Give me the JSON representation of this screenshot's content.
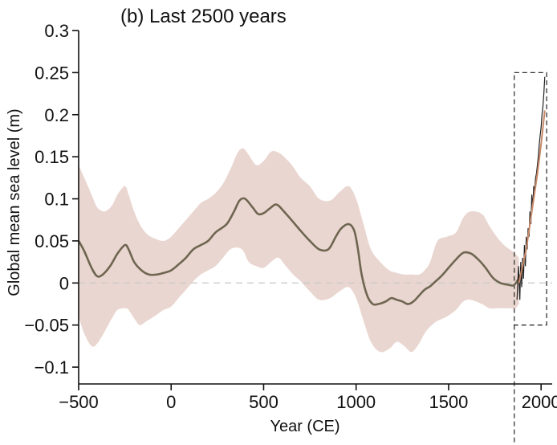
{
  "chart_data": {
    "type": "line",
    "title": "(b)  Last 2500 years",
    "xlabel": "Year (CE)",
    "ylabel": "Global mean sea level (m)",
    "xlim": [
      -500,
      2060
    ],
    "ylim": [
      -0.12,
      0.3
    ],
    "xticks": [
      -500,
      0,
      500,
      1000,
      1500,
      2000
    ],
    "xtick_labels": [
      "−500",
      "0",
      "500",
      "1000",
      "1500",
      "2000"
    ],
    "yticks": [
      0.3,
      0.25,
      0.2,
      0.15,
      0.1,
      0.05,
      0,
      -0.05,
      -0.1
    ],
    "ytick_labels": [
      "0.3",
      "0.25",
      "0.2",
      "0.15",
      "0.1",
      "0.05",
      "0",
      "−0.05",
      "−0.1"
    ],
    "grid": false,
    "zero_line": {
      "y": 0,
      "style": "dashed",
      "color": "#c8c8c8"
    },
    "highlight_box": {
      "x": [
        1855,
        2030
      ],
      "y": [
        -0.05,
        0.25
      ],
      "style": "dashed",
      "vertical_line_x": 1855
    },
    "colors": {
      "mean": "#6e6650",
      "band": "#ead6d0",
      "obs": "#222222",
      "recent": "#c88a6a"
    },
    "series": [
      {
        "role": "central-estimate",
        "x": [
          -500,
          -470,
          -430,
          -400,
          -370,
          -330,
          -290,
          -250,
          -230,
          -200,
          -160,
          -120,
          -80,
          -40,
          0,
          40,
          80,
          120,
          160,
          200,
          240,
          300,
          340,
          370,
          400,
          440,
          470,
          500,
          530,
          560,
          580,
          610,
          650,
          700,
          750,
          800,
          850,
          890,
          920,
          960,
          990,
          1010,
          1030,
          1060,
          1090,
          1120,
          1160,
          1190,
          1220,
          1250,
          1280,
          1310,
          1340,
          1370,
          1400,
          1430,
          1460,
          1500,
          1540,
          1580,
          1620,
          1660,
          1700,
          1740,
          1780,
          1820,
          1850,
          1870,
          1890
        ],
        "y": [
          0.05,
          0.038,
          0.018,
          0.008,
          0.01,
          0.02,
          0.035,
          0.045,
          0.04,
          0.025,
          0.015,
          0.01,
          0.01,
          0.012,
          0.015,
          0.022,
          0.03,
          0.04,
          0.045,
          0.05,
          0.06,
          0.07,
          0.085,
          0.098,
          0.1,
          0.09,
          0.082,
          0.083,
          0.088,
          0.093,
          0.092,
          0.085,
          0.075,
          0.062,
          0.05,
          0.04,
          0.04,
          0.055,
          0.065,
          0.07,
          0.062,
          0.04,
          0.01,
          -0.015,
          -0.025,
          -0.025,
          -0.022,
          -0.018,
          -0.02,
          -0.022,
          -0.025,
          -0.022,
          -0.015,
          -0.008,
          -0.004,
          0.002,
          0.008,
          0.018,
          0.028,
          0.036,
          0.035,
          0.028,
          0.018,
          0.006,
          0.0,
          -0.002,
          -0.003,
          0.002,
          0.01
        ]
      },
      {
        "role": "uncertainty-upper",
        "x": [
          -500,
          -470,
          -430,
          -400,
          -360,
          -320,
          -290,
          -250,
          -230,
          -200,
          -170,
          -130,
          -80,
          -40,
          0,
          40,
          80,
          120,
          160,
          200,
          240,
          280,
          320,
          360,
          390,
          420,
          460,
          500,
          540,
          580,
          620,
          660,
          700,
          750,
          800,
          860,
          910,
          960,
          1000,
          1040,
          1080,
          1130,
          1180,
          1220,
          1260,
          1300,
          1340,
          1370,
          1400,
          1440,
          1490,
          1540,
          1580,
          1620,
          1680,
          1720,
          1760,
          1800,
          1830,
          1860,
          1880
        ],
        "y": [
          0.14,
          0.125,
          0.105,
          0.09,
          0.085,
          0.092,
          0.105,
          0.115,
          0.105,
          0.085,
          0.07,
          0.058,
          0.052,
          0.05,
          0.055,
          0.065,
          0.075,
          0.085,
          0.095,
          0.1,
          0.107,
          0.118,
          0.135,
          0.155,
          0.16,
          0.152,
          0.14,
          0.145,
          0.156,
          0.155,
          0.148,
          0.138,
          0.125,
          0.115,
          0.1,
          0.098,
          0.108,
          0.115,
          0.1,
          0.07,
          0.04,
          0.025,
          0.015,
          0.012,
          0.01,
          0.01,
          0.01,
          0.015,
          0.025,
          0.05,
          0.055,
          0.06,
          0.078,
          0.085,
          0.082,
          0.068,
          0.055,
          0.045,
          0.04,
          0.035,
          0.03
        ]
      },
      {
        "role": "uncertainty-lower",
        "x": [
          -500,
          -470,
          -430,
          -400,
          -360,
          -320,
          -290,
          -250,
          -230,
          -200,
          -170,
          -130,
          -80,
          -40,
          0,
          40,
          80,
          120,
          160,
          200,
          240,
          280,
          320,
          360,
          390,
          420,
          460,
          500,
          540,
          580,
          620,
          660,
          700,
          750,
          800,
          860,
          910,
          960,
          1000,
          1040,
          1080,
          1130,
          1180,
          1220,
          1260,
          1300,
          1340,
          1370,
          1400,
          1440,
          1490,
          1540,
          1580,
          1620,
          1680,
          1720,
          1760,
          1800,
          1830,
          1860,
          1880
        ],
        "y": [
          -0.04,
          -0.06,
          -0.075,
          -0.072,
          -0.058,
          -0.042,
          -0.032,
          -0.03,
          -0.032,
          -0.042,
          -0.05,
          -0.045,
          -0.038,
          -0.032,
          -0.028,
          -0.018,
          -0.008,
          0.002,
          0.01,
          0.015,
          0.02,
          0.03,
          0.04,
          0.042,
          0.038,
          0.025,
          0.02,
          0.018,
          0.025,
          0.03,
          0.02,
          0.01,
          0.002,
          -0.01,
          -0.02,
          -0.018,
          -0.01,
          -0.005,
          -0.018,
          -0.045,
          -0.07,
          -0.082,
          -0.078,
          -0.07,
          -0.075,
          -0.082,
          -0.072,
          -0.06,
          -0.052,
          -0.045,
          -0.04,
          -0.032,
          -0.022,
          -0.02,
          -0.025,
          -0.03,
          -0.03,
          -0.03,
          -0.03,
          -0.03,
          -0.025
        ]
      },
      {
        "role": "observations",
        "x": [
          1870,
          1878,
          1885,
          1890,
          1895,
          1900,
          1905,
          1910,
          1915,
          1920,
          1925,
          1930,
          1935,
          1940,
          1945,
          1950,
          1955,
          1960,
          1965,
          1970,
          1975,
          1980,
          1985,
          1990,
          1995,
          2000,
          2005,
          2010,
          2015,
          2020
        ],
        "y": [
          -0.02,
          0.02,
          -0.02,
          0.025,
          -0.005,
          0.03,
          0.005,
          0.045,
          0.02,
          0.055,
          0.04,
          0.065,
          0.055,
          0.085,
          0.07,
          0.105,
          0.09,
          0.115,
          0.11,
          0.125,
          0.13,
          0.14,
          0.15,
          0.165,
          0.175,
          0.185,
          0.2,
          0.21,
          0.225,
          0.245
        ]
      },
      {
        "role": "recent-projection",
        "x": [
          1880,
          1900,
          1920,
          1940,
          1960,
          1980,
          2000,
          2020
        ],
        "y": [
          0.0,
          0.02,
          0.04,
          0.07,
          0.1,
          0.13,
          0.165,
          0.205
        ]
      }
    ]
  }
}
